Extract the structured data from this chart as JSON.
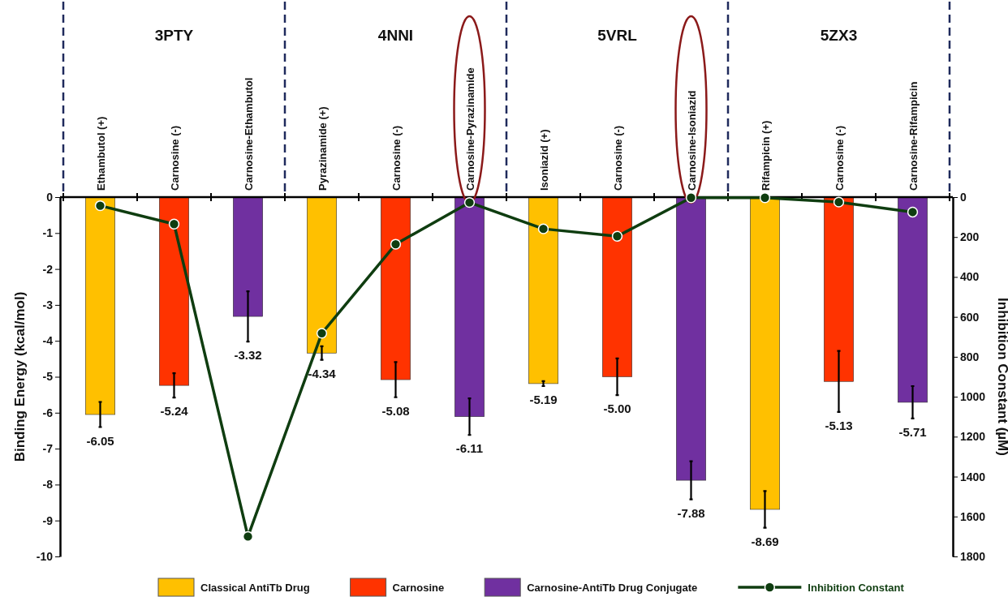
{
  "chart_data": {
    "type": "bar",
    "categories": [
      "Ethambutol (+)",
      "Carnosine (-)",
      "Carnosine-Ethambutol",
      "Pyrazinamide (+)",
      "Carnosine (-)",
      "Carnosine-Pyrazinamide",
      "Isoniazid (+)",
      "Carnosine (-)",
      "Carnosine-Isoniazid",
      "Rifampicin (+)",
      "Carnosine (-)",
      "Carnosine-Rifampicin"
    ],
    "annotations": [
      "3PTY",
      "4NNI",
      "5VRL",
      "5ZX3"
    ],
    "ylabel": "Binding Energy (kcal/mol)",
    "y2label": "Inhibition Constant (µM)",
    "ylim": [
      -10,
      0
    ],
    "yticks": [
      -10,
      -9,
      -8,
      -7,
      -6,
      -5,
      -4,
      -3,
      -2,
      -1,
      0
    ],
    "y2lim": [
      1800,
      0
    ],
    "y2ticks": [
      1800,
      1600,
      1400,
      1200,
      1000,
      800,
      600,
      400,
      200,
      0
    ],
    "legend": "bottom",
    "series": [
      {
        "name": "Classical AntiTb Drug",
        "color": "#ffc000",
        "values": [
          -6.05,
          null,
          null,
          -4.34,
          null,
          null,
          -5.19,
          null,
          null,
          -8.69,
          null,
          null
        ],
        "errors": [
          0.35,
          null,
          null,
          0.19,
          null,
          null,
          0.07,
          null,
          null,
          0.51,
          null,
          null
        ],
        "value_labels": [
          "-6.05",
          null,
          null,
          "-4.34",
          null,
          null,
          "-5.19",
          null,
          null,
          "-8.69",
          null,
          null
        ]
      },
      {
        "name": "Carnosine",
        "color": "#ff3300",
        "values": [
          null,
          -5.24,
          null,
          null,
          -5.08,
          null,
          null,
          -5.0,
          null,
          null,
          -5.13,
          null
        ],
        "errors": [
          null,
          0.34,
          null,
          null,
          0.49,
          null,
          null,
          0.51,
          null,
          null,
          0.85,
          null
        ],
        "value_labels": [
          null,
          "-5.24",
          null,
          null,
          "-5.08",
          null,
          null,
          "-5.00",
          null,
          null,
          "-5.13",
          null
        ]
      },
      {
        "name": "Carnosine-AntiTb Drug Conjugate",
        "color": "#7030a0",
        "values": [
          null,
          null,
          -3.32,
          null,
          null,
          -6.11,
          null,
          null,
          -7.88,
          null,
          null,
          -5.71
        ],
        "errors": [
          null,
          null,
          0.7,
          null,
          null,
          0.51,
          null,
          null,
          0.53,
          null,
          null,
          0.45
        ],
        "value_labels": [
          null,
          null,
          "-3.32",
          null,
          null,
          "-6.11",
          null,
          null,
          "-7.88",
          null,
          null,
          "-5.71"
        ]
      },
      {
        "name": "Inhibition Constant",
        "type": "line",
        "axis": "y2",
        "color": "#0f3d10",
        "marker": "circle",
        "values": [
          43,
          135,
          1700,
          682,
          236,
          27,
          159,
          196,
          3,
          3,
          25,
          75
        ]
      }
    ]
  }
}
